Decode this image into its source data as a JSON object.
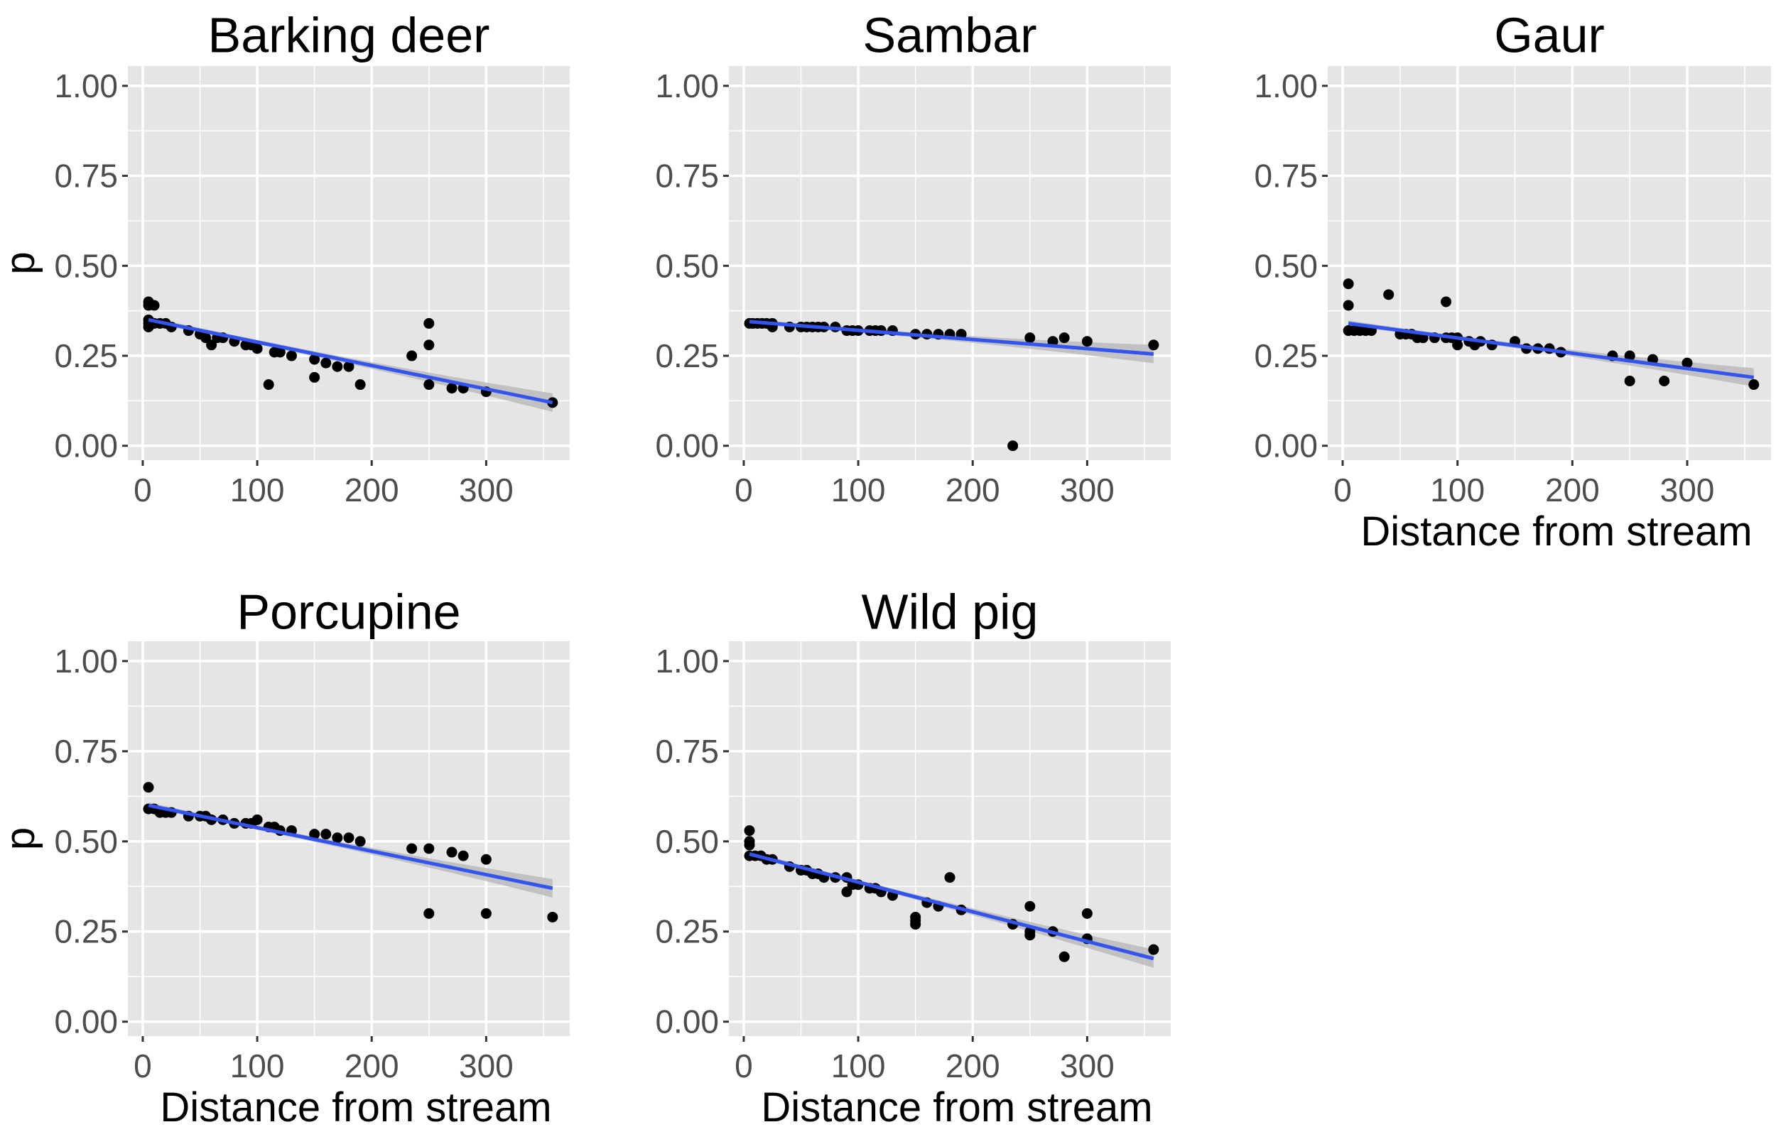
{
  "chart_data": [
    {
      "type": "scatter",
      "title": "Barking deer",
      "xlabel": "",
      "ylabel": "p",
      "xlim": [
        -13,
        373
      ],
      "ylim": [
        -0.04,
        1.055
      ],
      "xticks": [
        "0",
        "100",
        "200",
        "300"
      ],
      "yticks": [
        "0.00",
        "0.25",
        "0.50",
        "0.75",
        "1.00"
      ],
      "grid": true,
      "points": [
        [
          5,
          0.4
        ],
        [
          5,
          0.39
        ],
        [
          10,
          0.39
        ],
        [
          5,
          0.35
        ],
        [
          5,
          0.34
        ],
        [
          5,
          0.33
        ],
        [
          10,
          0.34
        ],
        [
          15,
          0.34
        ],
        [
          20,
          0.34
        ],
        [
          25,
          0.33
        ],
        [
          40,
          0.32
        ],
        [
          50,
          0.31
        ],
        [
          55,
          0.3
        ],
        [
          60,
          0.28
        ],
        [
          65,
          0.3
        ],
        [
          70,
          0.3
        ],
        [
          80,
          0.29
        ],
        [
          90,
          0.28
        ],
        [
          95,
          0.28
        ],
        [
          100,
          0.27
        ],
        [
          110,
          0.17
        ],
        [
          115,
          0.26
        ],
        [
          120,
          0.26
        ],
        [
          130,
          0.25
        ],
        [
          150,
          0.24
        ],
        [
          150,
          0.19
        ],
        [
          160,
          0.23
        ],
        [
          170,
          0.22
        ],
        [
          180,
          0.22
        ],
        [
          190,
          0.17
        ],
        [
          235,
          0.25
        ],
        [
          250,
          0.34
        ],
        [
          250,
          0.28
        ],
        [
          250,
          0.17
        ],
        [
          270,
          0.16
        ],
        [
          280,
          0.16
        ],
        [
          300,
          0.15
        ],
        [
          358,
          0.12
        ]
      ],
      "fit": {
        "x": [
          5,
          358
        ],
        "y": [
          0.35,
          0.12
        ]
      }
    },
    {
      "type": "scatter",
      "title": "Sambar",
      "xlabel": "",
      "ylabel": "",
      "xlim": [
        -13,
        373
      ],
      "ylim": [
        -0.04,
        1.055
      ],
      "xticks": [
        "0",
        "100",
        "200",
        "300"
      ],
      "yticks": [
        "0.00",
        "0.25",
        "0.50",
        "0.75",
        "1.00"
      ],
      "grid": true,
      "points": [
        [
          5,
          0.34
        ],
        [
          8,
          0.34
        ],
        [
          12,
          0.34
        ],
        [
          16,
          0.34
        ],
        [
          20,
          0.34
        ],
        [
          25,
          0.34
        ],
        [
          25,
          0.33
        ],
        [
          40,
          0.33
        ],
        [
          50,
          0.33
        ],
        [
          55,
          0.33
        ],
        [
          60,
          0.33
        ],
        [
          65,
          0.33
        ],
        [
          70,
          0.33
        ],
        [
          80,
          0.33
        ],
        [
          90,
          0.32
        ],
        [
          95,
          0.32
        ],
        [
          100,
          0.32
        ],
        [
          110,
          0.32
        ],
        [
          115,
          0.32
        ],
        [
          120,
          0.32
        ],
        [
          130,
          0.32
        ],
        [
          150,
          0.31
        ],
        [
          160,
          0.31
        ],
        [
          170,
          0.31
        ],
        [
          180,
          0.31
        ],
        [
          190,
          0.31
        ],
        [
          235,
          0.0
        ],
        [
          250,
          0.3
        ],
        [
          270,
          0.29
        ],
        [
          280,
          0.3
        ],
        [
          300,
          0.29
        ],
        [
          358,
          0.28
        ]
      ],
      "fit": {
        "x": [
          5,
          358
        ],
        "y": [
          0.345,
          0.255
        ]
      }
    },
    {
      "type": "scatter",
      "title": "Gaur",
      "xlabel": "Distance from stream",
      "ylabel": "",
      "xlim": [
        -13,
        373
      ],
      "ylim": [
        -0.04,
        1.055
      ],
      "xticks": [
        "0",
        "100",
        "200",
        "300"
      ],
      "yticks": [
        "0.00",
        "0.25",
        "0.50",
        "0.75",
        "1.00"
      ],
      "grid": true,
      "points": [
        [
          5,
          0.45
        ],
        [
          5,
          0.39
        ],
        [
          40,
          0.42
        ],
        [
          90,
          0.4
        ],
        [
          5,
          0.32
        ],
        [
          10,
          0.32
        ],
        [
          15,
          0.32
        ],
        [
          20,
          0.32
        ],
        [
          25,
          0.32
        ],
        [
          50,
          0.31
        ],
        [
          55,
          0.31
        ],
        [
          60,
          0.31
        ],
        [
          65,
          0.3
        ],
        [
          70,
          0.3
        ],
        [
          80,
          0.3
        ],
        [
          90,
          0.3
        ],
        [
          95,
          0.3
        ],
        [
          100,
          0.3
        ],
        [
          100,
          0.28
        ],
        [
          110,
          0.29
        ],
        [
          115,
          0.28
        ],
        [
          120,
          0.29
        ],
        [
          130,
          0.28
        ],
        [
          150,
          0.29
        ],
        [
          160,
          0.27
        ],
        [
          170,
          0.27
        ],
        [
          180,
          0.27
        ],
        [
          190,
          0.26
        ],
        [
          235,
          0.25
        ],
        [
          250,
          0.25
        ],
        [
          250,
          0.18
        ],
        [
          270,
          0.24
        ],
        [
          280,
          0.18
        ],
        [
          300,
          0.23
        ],
        [
          358,
          0.17
        ]
      ],
      "fit": {
        "x": [
          5,
          358
        ],
        "y": [
          0.34,
          0.19
        ]
      }
    },
    {
      "type": "scatter",
      "title": "Porcupine",
      "xlabel": "Distance from stream",
      "ylabel": "p",
      "xlim": [
        -13,
        373
      ],
      "ylim": [
        -0.04,
        1.055
      ],
      "xticks": [
        "0",
        "100",
        "200",
        "300"
      ],
      "yticks": [
        "0.00",
        "0.25",
        "0.50",
        "0.75",
        "1.00"
      ],
      "grid": true,
      "points": [
        [
          5,
          0.65
        ],
        [
          5,
          0.59
        ],
        [
          10,
          0.59
        ],
        [
          15,
          0.58
        ],
        [
          20,
          0.58
        ],
        [
          25,
          0.58
        ],
        [
          40,
          0.57
        ],
        [
          50,
          0.57
        ],
        [
          55,
          0.57
        ],
        [
          60,
          0.56
        ],
        [
          70,
          0.56
        ],
        [
          80,
          0.55
        ],
        [
          90,
          0.55
        ],
        [
          95,
          0.55
        ],
        [
          100,
          0.56
        ],
        [
          110,
          0.54
        ],
        [
          115,
          0.54
        ],
        [
          120,
          0.53
        ],
        [
          130,
          0.53
        ],
        [
          150,
          0.52
        ],
        [
          160,
          0.52
        ],
        [
          170,
          0.51
        ],
        [
          180,
          0.51
        ],
        [
          190,
          0.5
        ],
        [
          235,
          0.48
        ],
        [
          250,
          0.48
        ],
        [
          250,
          0.3
        ],
        [
          270,
          0.47
        ],
        [
          280,
          0.46
        ],
        [
          300,
          0.45
        ],
        [
          300,
          0.3
        ],
        [
          358,
          0.29
        ]
      ],
      "fit": {
        "x": [
          5,
          358
        ],
        "y": [
          0.6,
          0.37
        ]
      }
    },
    {
      "type": "scatter",
      "title": "Wild pig",
      "xlabel": "Distance from stream",
      "ylabel": "",
      "xlim": [
        -13,
        373
      ],
      "ylim": [
        -0.04,
        1.055
      ],
      "xticks": [
        "0",
        "100",
        "200",
        "300"
      ],
      "yticks": [
        "0.00",
        "0.25",
        "0.50",
        "0.75",
        "1.00"
      ],
      "grid": true,
      "points": [
        [
          5,
          0.53
        ],
        [
          5,
          0.5
        ],
        [
          5,
          0.49
        ],
        [
          5,
          0.46
        ],
        [
          10,
          0.46
        ],
        [
          15,
          0.46
        ],
        [
          20,
          0.45
        ],
        [
          25,
          0.45
        ],
        [
          40,
          0.43
        ],
        [
          50,
          0.42
        ],
        [
          55,
          0.42
        ],
        [
          60,
          0.41
        ],
        [
          65,
          0.41
        ],
        [
          70,
          0.4
        ],
        [
          80,
          0.4
        ],
        [
          90,
          0.4
        ],
        [
          90,
          0.36
        ],
        [
          95,
          0.38
        ],
        [
          100,
          0.38
        ],
        [
          110,
          0.37
        ],
        [
          115,
          0.37
        ],
        [
          120,
          0.36
        ],
        [
          130,
          0.35
        ],
        [
          150,
          0.29
        ],
        [
          150,
          0.28
        ],
        [
          150,
          0.27
        ],
        [
          160,
          0.33
        ],
        [
          170,
          0.32
        ],
        [
          180,
          0.4
        ],
        [
          190,
          0.31
        ],
        [
          235,
          0.27
        ],
        [
          250,
          0.32
        ],
        [
          250,
          0.25
        ],
        [
          250,
          0.24
        ],
        [
          270,
          0.25
        ],
        [
          280,
          0.18
        ],
        [
          300,
          0.3
        ],
        [
          300,
          0.23
        ],
        [
          358,
          0.2
        ]
      ],
      "fit": {
        "x": [
          5,
          358
        ],
        "y": [
          0.465,
          0.175
        ]
      }
    }
  ],
  "colors": {
    "panel": "#e5e5e5",
    "grid": "#ffffff",
    "fit": "#3355ee",
    "ribbon": "#b8b8b8",
    "point": "#000000"
  }
}
